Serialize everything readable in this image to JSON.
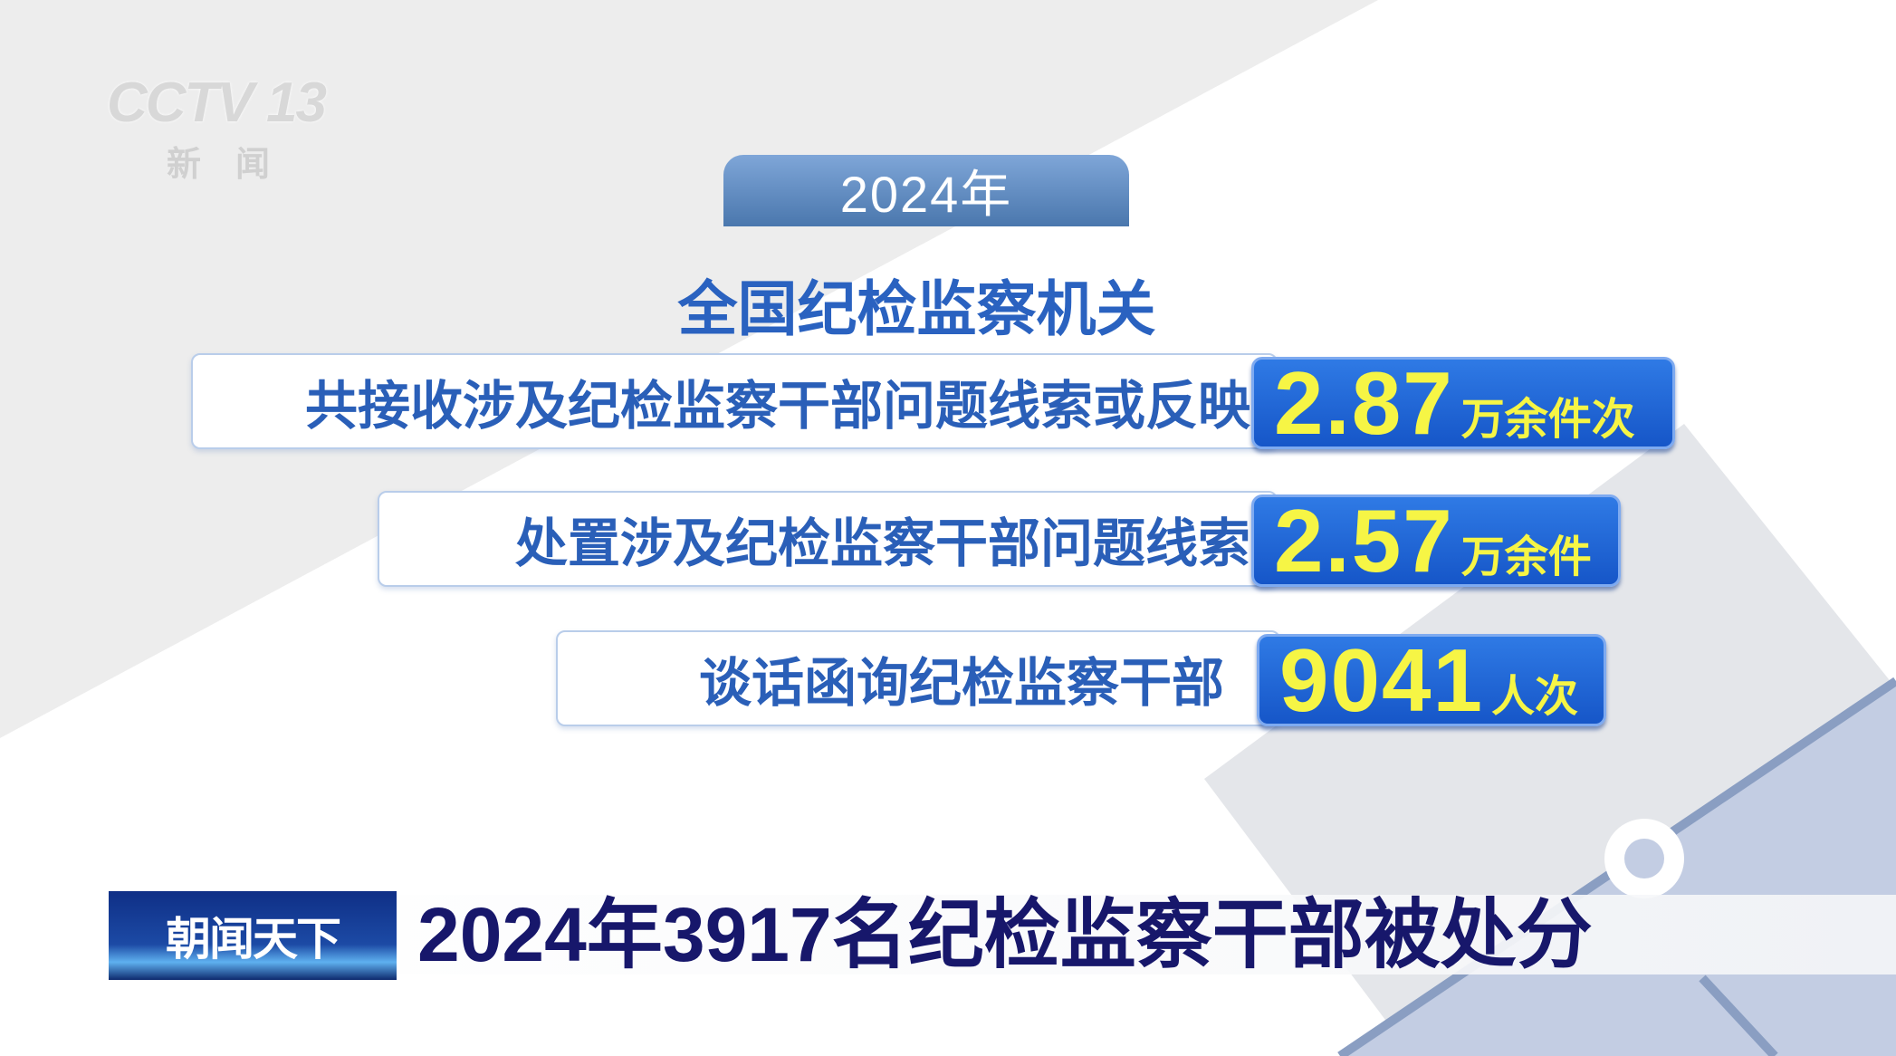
{
  "watermark": {
    "channel": "CCTV 13",
    "sub": "新闻"
  },
  "year_badge": "2024年",
  "heading": "全国纪检监察机关",
  "stats": [
    {
      "label": "共接收涉及纪检监察干部问题线索或反映",
      "value": "2.87",
      "unit": "万余件次"
    },
    {
      "label": "处置涉及纪检监察干部问题线索",
      "value": "2.57",
      "unit": "万余件"
    },
    {
      "label": "谈话函询纪检监察干部",
      "value": "9041",
      "unit": "人次"
    }
  ],
  "program_tag": "朝闻天下",
  "headline": "2024年3917名纪检监察干部被处分",
  "colors": {
    "accent_blue": "#1f63d6",
    "value_yellow": "#f6f545",
    "headline": "#17176b"
  }
}
